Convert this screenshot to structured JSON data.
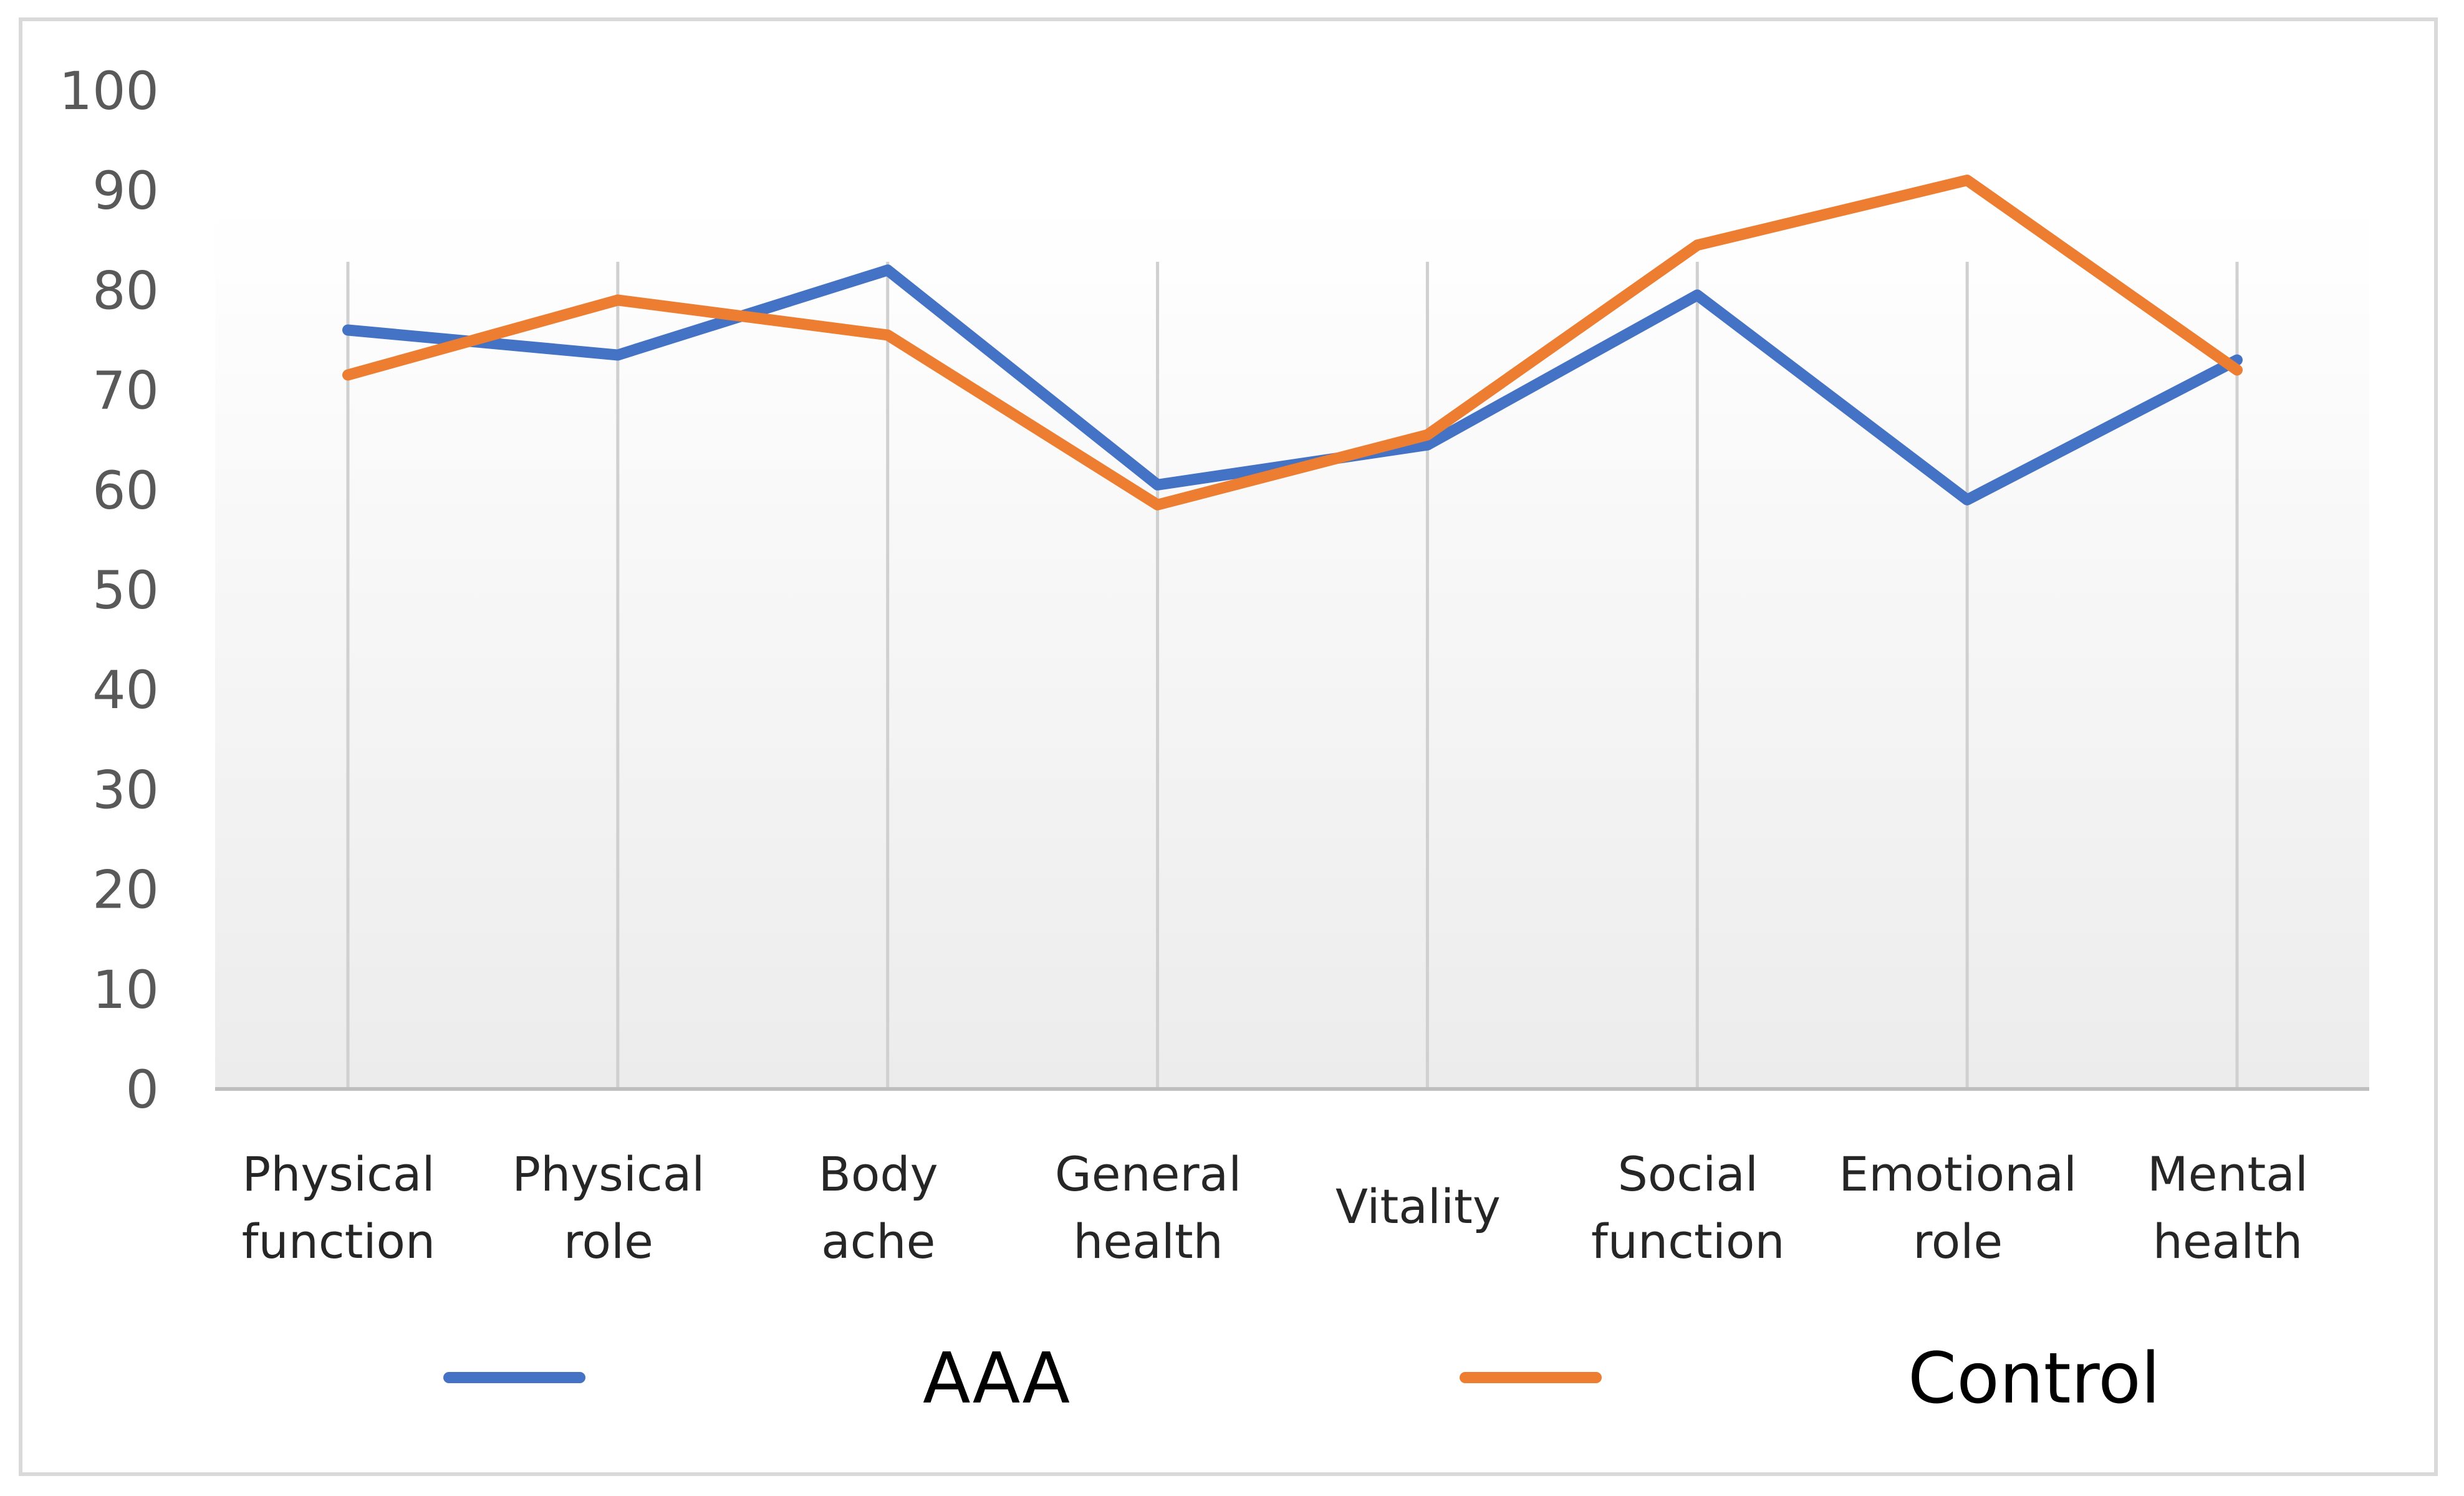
{
  "chart_data": {
    "type": "line",
    "title": "",
    "xlabel": "",
    "ylabel": "",
    "categories": [
      [
        "Physical",
        "function"
      ],
      [
        "Physical",
        "role"
      ],
      [
        "Body",
        "ache"
      ],
      [
        "General",
        "health"
      ],
      [
        "Vitality"
      ],
      [
        "Social",
        "function"
      ],
      [
        "Emotional",
        "role"
      ],
      [
        "Mental",
        "health"
      ]
    ],
    "ylim": [
      0,
      100
    ],
    "yticks": [
      "0",
      "10",
      "20",
      "30",
      "40",
      "50",
      "60",
      "70",
      "80",
      "90",
      "100"
    ],
    "grid": "vertical",
    "legend_position": "bottom",
    "series": [
      {
        "name": "AAA",
        "color": "#4472C4",
        "values": [
          76,
          73.5,
          82,
          60.5,
          64.5,
          79.5,
          59,
          73
        ]
      },
      {
        "name": "Control",
        "color": "#ED7D31",
        "values": [
          71.5,
          79,
          75.5,
          58.5,
          65.5,
          84.5,
          91,
          72
        ]
      }
    ]
  }
}
